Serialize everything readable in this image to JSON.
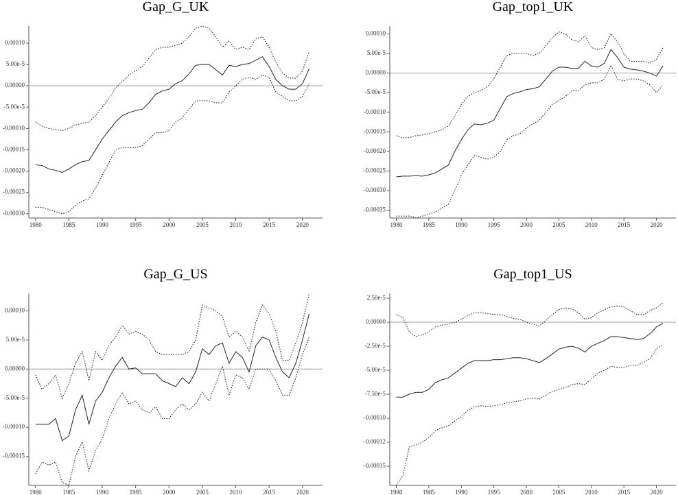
{
  "chart_data": [
    {
      "type": "line",
      "title": "Gap_G_UK",
      "x": [
        1980,
        1981,
        1982,
        1983,
        1984,
        1985,
        1986,
        1987,
        1988,
        1989,
        1990,
        1991,
        1992,
        1993,
        1994,
        1995,
        1996,
        1997,
        1998,
        1999,
        2000,
        2001,
        2002,
        2003,
        2004,
        2005,
        2006,
        2007,
        2008,
        2009,
        2010,
        2011,
        2012,
        2013,
        2014,
        2015,
        2016,
        2017,
        2018,
        2019,
        2020,
        2021
      ],
      "xlim": [
        1979,
        2023
      ],
      "xticks": [
        1980,
        1985,
        1990,
        1995,
        2000,
        2005,
        2010,
        2015,
        2020
      ],
      "ylim": [
        -0.00031,
        0.00014
      ],
      "yticks": [
        {
          "value": 0.0001,
          "label": "0.00010"
        },
        {
          "value": 5e-05,
          "label": "5.00e-5"
        },
        {
          "value": 0,
          "label": "0.00000"
        },
        {
          "value": -5e-05,
          "label": "-5.00e-5"
        },
        {
          "value": -0.0001,
          "label": "-0.00010"
        },
        {
          "value": -0.00015,
          "label": "-0.00015"
        },
        {
          "value": -0.0002,
          "label": "-0.00020"
        },
        {
          "value": -0.00025,
          "label": "-0.00025"
        },
        {
          "value": -0.0003,
          "label": "-0.00030"
        }
      ],
      "reference_line": 0,
      "series": [
        {
          "color": "#222222",
          "style": "solid",
          "values": [
            -0.000185,
            -0.000187,
            -0.000195,
            -0.000198,
            -0.000203,
            -0.000195,
            -0.000185,
            -0.000178,
            -0.000175,
            -0.00015,
            -0.000125,
            -0.000105,
            -8.5e-05,
            -7e-05,
            -6.3e-05,
            -5.8e-05,
            -5.5e-05,
            -4e-05,
            -2e-05,
            -1.2e-05,
            -8e-06,
            5e-06,
            1.2e-05,
            2.8e-05,
            4.8e-05,
            5e-05,
            5e-05,
            3.8e-05,
            2.5e-05,
            4.8e-05,
            4.5e-05,
            5e-05,
            5.2e-05,
            6e-05,
            6.8e-05,
            4.5e-05,
            1.5e-05,
            0,
            -8e-06,
            -8e-06,
            5e-06,
            4e-05
          ]
        },
        {
          "color": "#222222",
          "style": "dotted",
          "values": [
            -8.5e-05,
            -9.5e-05,
            -0.0001,
            -0.000103,
            -0.000105,
            -0.0001,
            -9.2e-05,
            -8.8e-05,
            -8.5e-05,
            -7e-05,
            -5e-05,
            -3e-05,
            -5e-06,
            1e-05,
            2.5e-05,
            3.5e-05,
            4.5e-05,
            6.5e-05,
            8.5e-05,
            9e-05,
            9e-05,
            9.5e-05,
            0.0001,
            0.000115,
            0.000135,
            0.00014,
            0.000135,
            0.000115,
            9e-05,
            0.000105,
            8.5e-05,
            9e-05,
            8.5e-05,
            0.00011,
            0.000115,
            9e-05,
            5.5e-05,
            3e-05,
            1.8e-05,
            1.8e-05,
            3.5e-05,
            8e-05
          ]
        },
        {
          "color": "#222222",
          "style": "dotted",
          "values": [
            -0.000285,
            -0.000285,
            -0.00029,
            -0.000295,
            -0.0003,
            -0.000295,
            -0.00028,
            -0.00027,
            -0.000265,
            -0.00024,
            -0.00021,
            -0.00018,
            -0.00015,
            -0.000145,
            -0.000145,
            -0.000145,
            -0.00014,
            -0.000125,
            -0.00011,
            -0.00011,
            -0.000105,
            -8.5e-05,
            -7.5e-05,
            -5.5e-05,
            -3.5e-05,
            -3.5e-05,
            -3.5e-05,
            -4e-05,
            -4e-05,
            -1.5e-05,
            0,
            1.5e-05,
            2e-05,
            1.5e-05,
            2.5e-05,
            2e-05,
            -1.5e-05,
            -2.5e-05,
            -3.5e-05,
            -3.5e-05,
            -2.5e-05,
            5e-06
          ]
        }
      ]
    },
    {
      "type": "line",
      "title": "Gap_top1_UK",
      "x": [
        1980,
        1981,
        1982,
        1983,
        1984,
        1985,
        1986,
        1987,
        1988,
        1989,
        1990,
        1991,
        1992,
        1993,
        1994,
        1995,
        1996,
        1997,
        1998,
        1999,
        2000,
        2001,
        2002,
        2003,
        2004,
        2005,
        2006,
        2007,
        2008,
        2009,
        2010,
        2011,
        2012,
        2013,
        2014,
        2015,
        2016,
        2017,
        2018,
        2019,
        2020,
        2021
      ],
      "xlim": [
        1979,
        2023
      ],
      "xticks": [
        1980,
        1985,
        1990,
        1995,
        2000,
        2005,
        2010,
        2015,
        2020
      ],
      "ylim": [
        -0.00037,
        0.00012
      ],
      "yticks": [
        {
          "value": 0.0001,
          "label": "0.00010"
        },
        {
          "value": 5e-05,
          "label": "5.00e-5"
        },
        {
          "value": 0,
          "label": "0.00000"
        },
        {
          "value": -5e-05,
          "label": "-5.00e-5"
        },
        {
          "value": -0.0001,
          "label": "-0.00010"
        },
        {
          "value": -0.00015,
          "label": "-0.00015"
        },
        {
          "value": -0.0002,
          "label": "-0.00020"
        },
        {
          "value": -0.00025,
          "label": "-0.00025"
        },
        {
          "value": -0.0003,
          "label": "-0.00030"
        },
        {
          "value": -0.00035,
          "label": "-0.00035"
        }
      ],
      "reference_line": 0,
      "series": [
        {
          "color": "#222222",
          "style": "solid",
          "values": [
            -0.000265,
            -0.000263,
            -0.000263,
            -0.000262,
            -0.000263,
            -0.00026,
            -0.000255,
            -0.000245,
            -0.000235,
            -0.0002,
            -0.00017,
            -0.000145,
            -0.00013,
            -0.000132,
            -0.000128,
            -0.00012,
            -9e-05,
            -6e-05,
            -5.2e-05,
            -4.8e-05,
            -4.2e-05,
            -4e-05,
            -3.5e-05,
            -1.5e-05,
            5e-06,
            1.5e-05,
            1.5e-05,
            1.2e-05,
            1.2e-05,
            3e-05,
            1.8e-05,
            1.5e-05,
            2.5e-05,
            6e-05,
            4e-05,
            1.5e-05,
            1e-05,
            8e-06,
            5e-06,
            0,
            -8e-06,
            1.8e-05
          ]
        },
        {
          "color": "#222222",
          "style": "dotted",
          "values": [
            -0.00016,
            -0.000165,
            -0.000165,
            -0.00016,
            -0.000158,
            -0.000155,
            -0.00015,
            -0.000145,
            -0.000135,
            -0.00011,
            -8e-05,
            -6e-05,
            -5e-05,
            -4.5e-05,
            -3.5e-05,
            -1.5e-05,
            1.5e-05,
            4.5e-05,
            5e-05,
            5e-05,
            5e-05,
            4.5e-05,
            5e-05,
            7e-05,
            9e-05,
            0.000105,
            0.0001,
            8.5e-05,
            8e-05,
            9.5e-05,
            6.5e-05,
            6e-05,
            6.5e-05,
            0.0001,
            8e-05,
            5e-05,
            3e-05,
            3e-05,
            3e-05,
            2.5e-05,
            3.5e-05,
            6.5e-05
          ]
        },
        {
          "color": "#222222",
          "style": "dotted",
          "values": [
            -0.000365,
            -0.000365,
            -0.000365,
            -0.00037,
            -0.000365,
            -0.00036,
            -0.000355,
            -0.000345,
            -0.000335,
            -0.0003,
            -0.00026,
            -0.000235,
            -0.00021,
            -0.000215,
            -0.00022,
            -0.000215,
            -0.0002,
            -0.00017,
            -0.00016,
            -0.000155,
            -0.00014,
            -0.00013,
            -0.00012,
            -0.0001,
            -8e-05,
            -7e-05,
            -6e-05,
            -4.5e-05,
            -4.5e-05,
            -3e-05,
            -2.5e-05,
            -2.5e-05,
            -1.5e-05,
            2e-05,
            -1.5e-05,
            -2e-05,
            -1.5e-05,
            -1.5e-05,
            -2e-05,
            -3e-05,
            -5e-05,
            -3e-05
          ]
        }
      ]
    },
    {
      "type": "line",
      "title": "Gap_G_US",
      "x": [
        1980,
        1981,
        1982,
        1983,
        1984,
        1985,
        1986,
        1987,
        1988,
        1989,
        1990,
        1991,
        1992,
        1993,
        1994,
        1995,
        1996,
        1997,
        1998,
        1999,
        2000,
        2001,
        2002,
        2003,
        2004,
        2005,
        2006,
        2007,
        2008,
        2009,
        2010,
        2011,
        2012,
        2013,
        2014,
        2015,
        2016,
        2017,
        2018,
        2019,
        2020,
        2021
      ],
      "xlim": [
        1979,
        2023
      ],
      "xticks": [
        1980,
        1985,
        1990,
        1995,
        2000,
        2005,
        2010,
        2015,
        2020
      ],
      "ylim": [
        -0.0002,
        0.00013
      ],
      "yticks": [
        {
          "value": 0.0001,
          "label": "0.00010"
        },
        {
          "value": 5e-05,
          "label": "5.00e-5"
        },
        {
          "value": 0,
          "label": "0.00000"
        },
        {
          "value": -5e-05,
          "label": "-5.00e-5"
        },
        {
          "value": -0.0001,
          "label": "-0.00010"
        },
        {
          "value": -0.00015,
          "label": "-0.00015"
        }
      ],
      "reference_line": 0,
      "series": [
        {
          "color": "#222222",
          "style": "solid",
          "values": [
            -9.5e-05,
            -9.5e-05,
            -9.5e-05,
            -8.5e-05,
            -0.000123,
            -0.000115,
            -7e-05,
            -4.5e-05,
            -9.5e-05,
            -5.5e-05,
            -4e-05,
            -1.5e-05,
            5e-06,
            2e-05,
            0,
            2e-06,
            -8e-06,
            -8e-06,
            -8e-06,
            -2e-05,
            -2.5e-05,
            -3e-05,
            -1.5e-05,
            -2.5e-05,
            -5e-06,
            3.5e-05,
            2.5e-05,
            4e-05,
            4.5e-05,
            1e-05,
            3e-05,
            2e-05,
            -5e-06,
            4e-05,
            5.5e-05,
            5e-05,
            2e-05,
            -5e-06,
            -1.5e-05,
            1e-05,
            5e-05,
            9.5e-05
          ]
        },
        {
          "color": "#222222",
          "style": "dotted",
          "values": [
            -1e-05,
            -3.5e-05,
            -2.5e-05,
            -1e-05,
            -5e-05,
            -2.5e-05,
            1e-05,
            3e-05,
            -2e-05,
            3e-05,
            1.5e-05,
            4e-05,
            5.5e-05,
            7.5e-05,
            6e-05,
            6.5e-05,
            6e-05,
            5e-05,
            3e-05,
            2.5e-05,
            2.5e-05,
            2.5e-05,
            2.5e-05,
            3e-05,
            5e-05,
            0.00011,
            0.000105,
            0.0001,
            9e-05,
            5.5e-05,
            6.5e-05,
            5.5e-05,
            3e-05,
            8e-05,
            0.00011,
            9.5e-05,
            6.5e-05,
            1.5e-05,
            1.5e-05,
            4.5e-05,
            8e-05,
            0.00013
          ]
        },
        {
          "color": "#222222",
          "style": "dotted",
          "values": [
            -0.00018,
            -0.00016,
            -0.000165,
            -0.00016,
            -0.000195,
            -0.0002,
            -0.00015,
            -0.000125,
            -0.000175,
            -0.00014,
            -0.00012,
            -8.5e-05,
            -6e-05,
            -4e-05,
            -6e-05,
            -5.5e-05,
            -7e-05,
            -7.5e-05,
            -6.5e-05,
            -8.5e-05,
            -8.5e-05,
            -7e-05,
            -6e-05,
            -7e-05,
            -6e-05,
            -4e-05,
            -5.5e-05,
            -2.5e-05,
            5e-06,
            -4.5e-05,
            -1e-05,
            -1.5e-05,
            -3.5e-05,
            0,
            0,
            0,
            -2e-05,
            -4.5e-05,
            -4.5e-05,
            -1.5e-05,
            2.5e-05,
            5.5e-05
          ]
        }
      ]
    },
    {
      "type": "line",
      "title": "Gap_top1_US",
      "x": [
        1980,
        1981,
        1982,
        1983,
        1984,
        1985,
        1986,
        1987,
        1988,
        1989,
        1990,
        1991,
        1992,
        1993,
        1994,
        1995,
        1996,
        1997,
        1998,
        1999,
        2000,
        2001,
        2002,
        2003,
        2004,
        2005,
        2006,
        2007,
        2008,
        2009,
        2010,
        2011,
        2012,
        2013,
        2014,
        2015,
        2016,
        2017,
        2018,
        2019,
        2020,
        2021
      ],
      "xlim": [
        1979,
        2023
      ],
      "xticks": [
        1980,
        1985,
        1990,
        1995,
        2000,
        2005,
        2010,
        2015,
        2020
      ],
      "ylim": [
        -0.00017,
        3e-05
      ],
      "yticks": [
        {
          "value": 2.5e-05,
          "label": "2.50e-5"
        },
        {
          "value": 0,
          "label": "0.00000"
        },
        {
          "value": -2.5e-05,
          "label": "-2.50e-5"
        },
        {
          "value": -5e-05,
          "label": "-5.00e-5"
        },
        {
          "value": -7.5e-05,
          "label": "-7.50e-5"
        },
        {
          "value": -0.0001,
          "label": "-0.00010"
        },
        {
          "value": -0.000125,
          "label": "-0.00012"
        },
        {
          "value": -0.00015,
          "label": "-0.00015"
        }
      ],
      "reference_line": 0,
      "series": [
        {
          "color": "#222222",
          "style": "solid",
          "values": [
            -7.8e-05,
            -7.8e-05,
            -7.5e-05,
            -7.3e-05,
            -7.3e-05,
            -7e-05,
            -6.3e-05,
            -6e-05,
            -5.8e-05,
            -5.3e-05,
            -4.8e-05,
            -4.3e-05,
            -4e-05,
            -4e-05,
            -4e-05,
            -3.9e-05,
            -3.9e-05,
            -3.8e-05,
            -3.7e-05,
            -3.7e-05,
            -3.8e-05,
            -4e-05,
            -4.2e-05,
            -3.8e-05,
            -3.3e-05,
            -2.8e-05,
            -2.6e-05,
            -2.5e-05,
            -2.7e-05,
            -3.1e-05,
            -2.5e-05,
            -2.2e-05,
            -1.9e-05,
            -1.5e-05,
            -1.5e-05,
            -1.6e-05,
            -1.7e-05,
            -1.8e-05,
            -1.7e-05,
            -1.2e-05,
            -5e-06,
            -1e-06
          ]
        },
        {
          "color": "#222222",
          "style": "dotted",
          "values": [
            8e-06,
            5e-06,
            -1e-05,
            -1.5e-05,
            -1.3e-05,
            -1e-05,
            -5e-06,
            -3e-06,
            -2e-06,
            0,
            3e-06,
            7e-06,
            1e-05,
            1e-05,
            9e-06,
            8e-06,
            8e-06,
            6e-06,
            4e-06,
            3e-06,
            0,
            -2e-06,
            -4e-06,
            2e-06,
            8e-06,
            1.3e-05,
            1.5e-05,
            1.4e-05,
            1e-05,
            3e-06,
            5e-06,
            1e-05,
            1.3e-05,
            1.6e-05,
            1.7e-05,
            1.6e-05,
            1.2e-05,
            8e-06,
            8e-06,
            1.2e-05,
            1.5e-05,
            2e-05
          ]
        },
        {
          "color": "#222222",
          "style": "dotted",
          "values": [
            -0.00017,
            -0.00016,
            -0.00013,
            -0.000128,
            -0.000125,
            -0.00012,
            -0.000113,
            -0.00011,
            -0.000108,
            -0.000103,
            -9.8e-05,
            -9.2e-05,
            -8.8e-05,
            -8.7e-05,
            -8.8e-05,
            -8.7e-05,
            -8.6e-05,
            -8.4e-05,
            -8.3e-05,
            -8.2e-05,
            -8e-05,
            -7.9e-05,
            -8e-05,
            -7.6e-05,
            -7.2e-05,
            -7e-05,
            -6.8e-05,
            -6.5e-05,
            -6.4e-05,
            -6.5e-05,
            -5.9e-05,
            -5.3e-05,
            -5e-05,
            -4.6e-05,
            -4.7e-05,
            -4.7e-05,
            -4.5e-05,
            -4.5e-05,
            -4.2e-05,
            -3.8e-05,
            -2.8e-05,
            -2.3e-05
          ]
        }
      ]
    }
  ]
}
